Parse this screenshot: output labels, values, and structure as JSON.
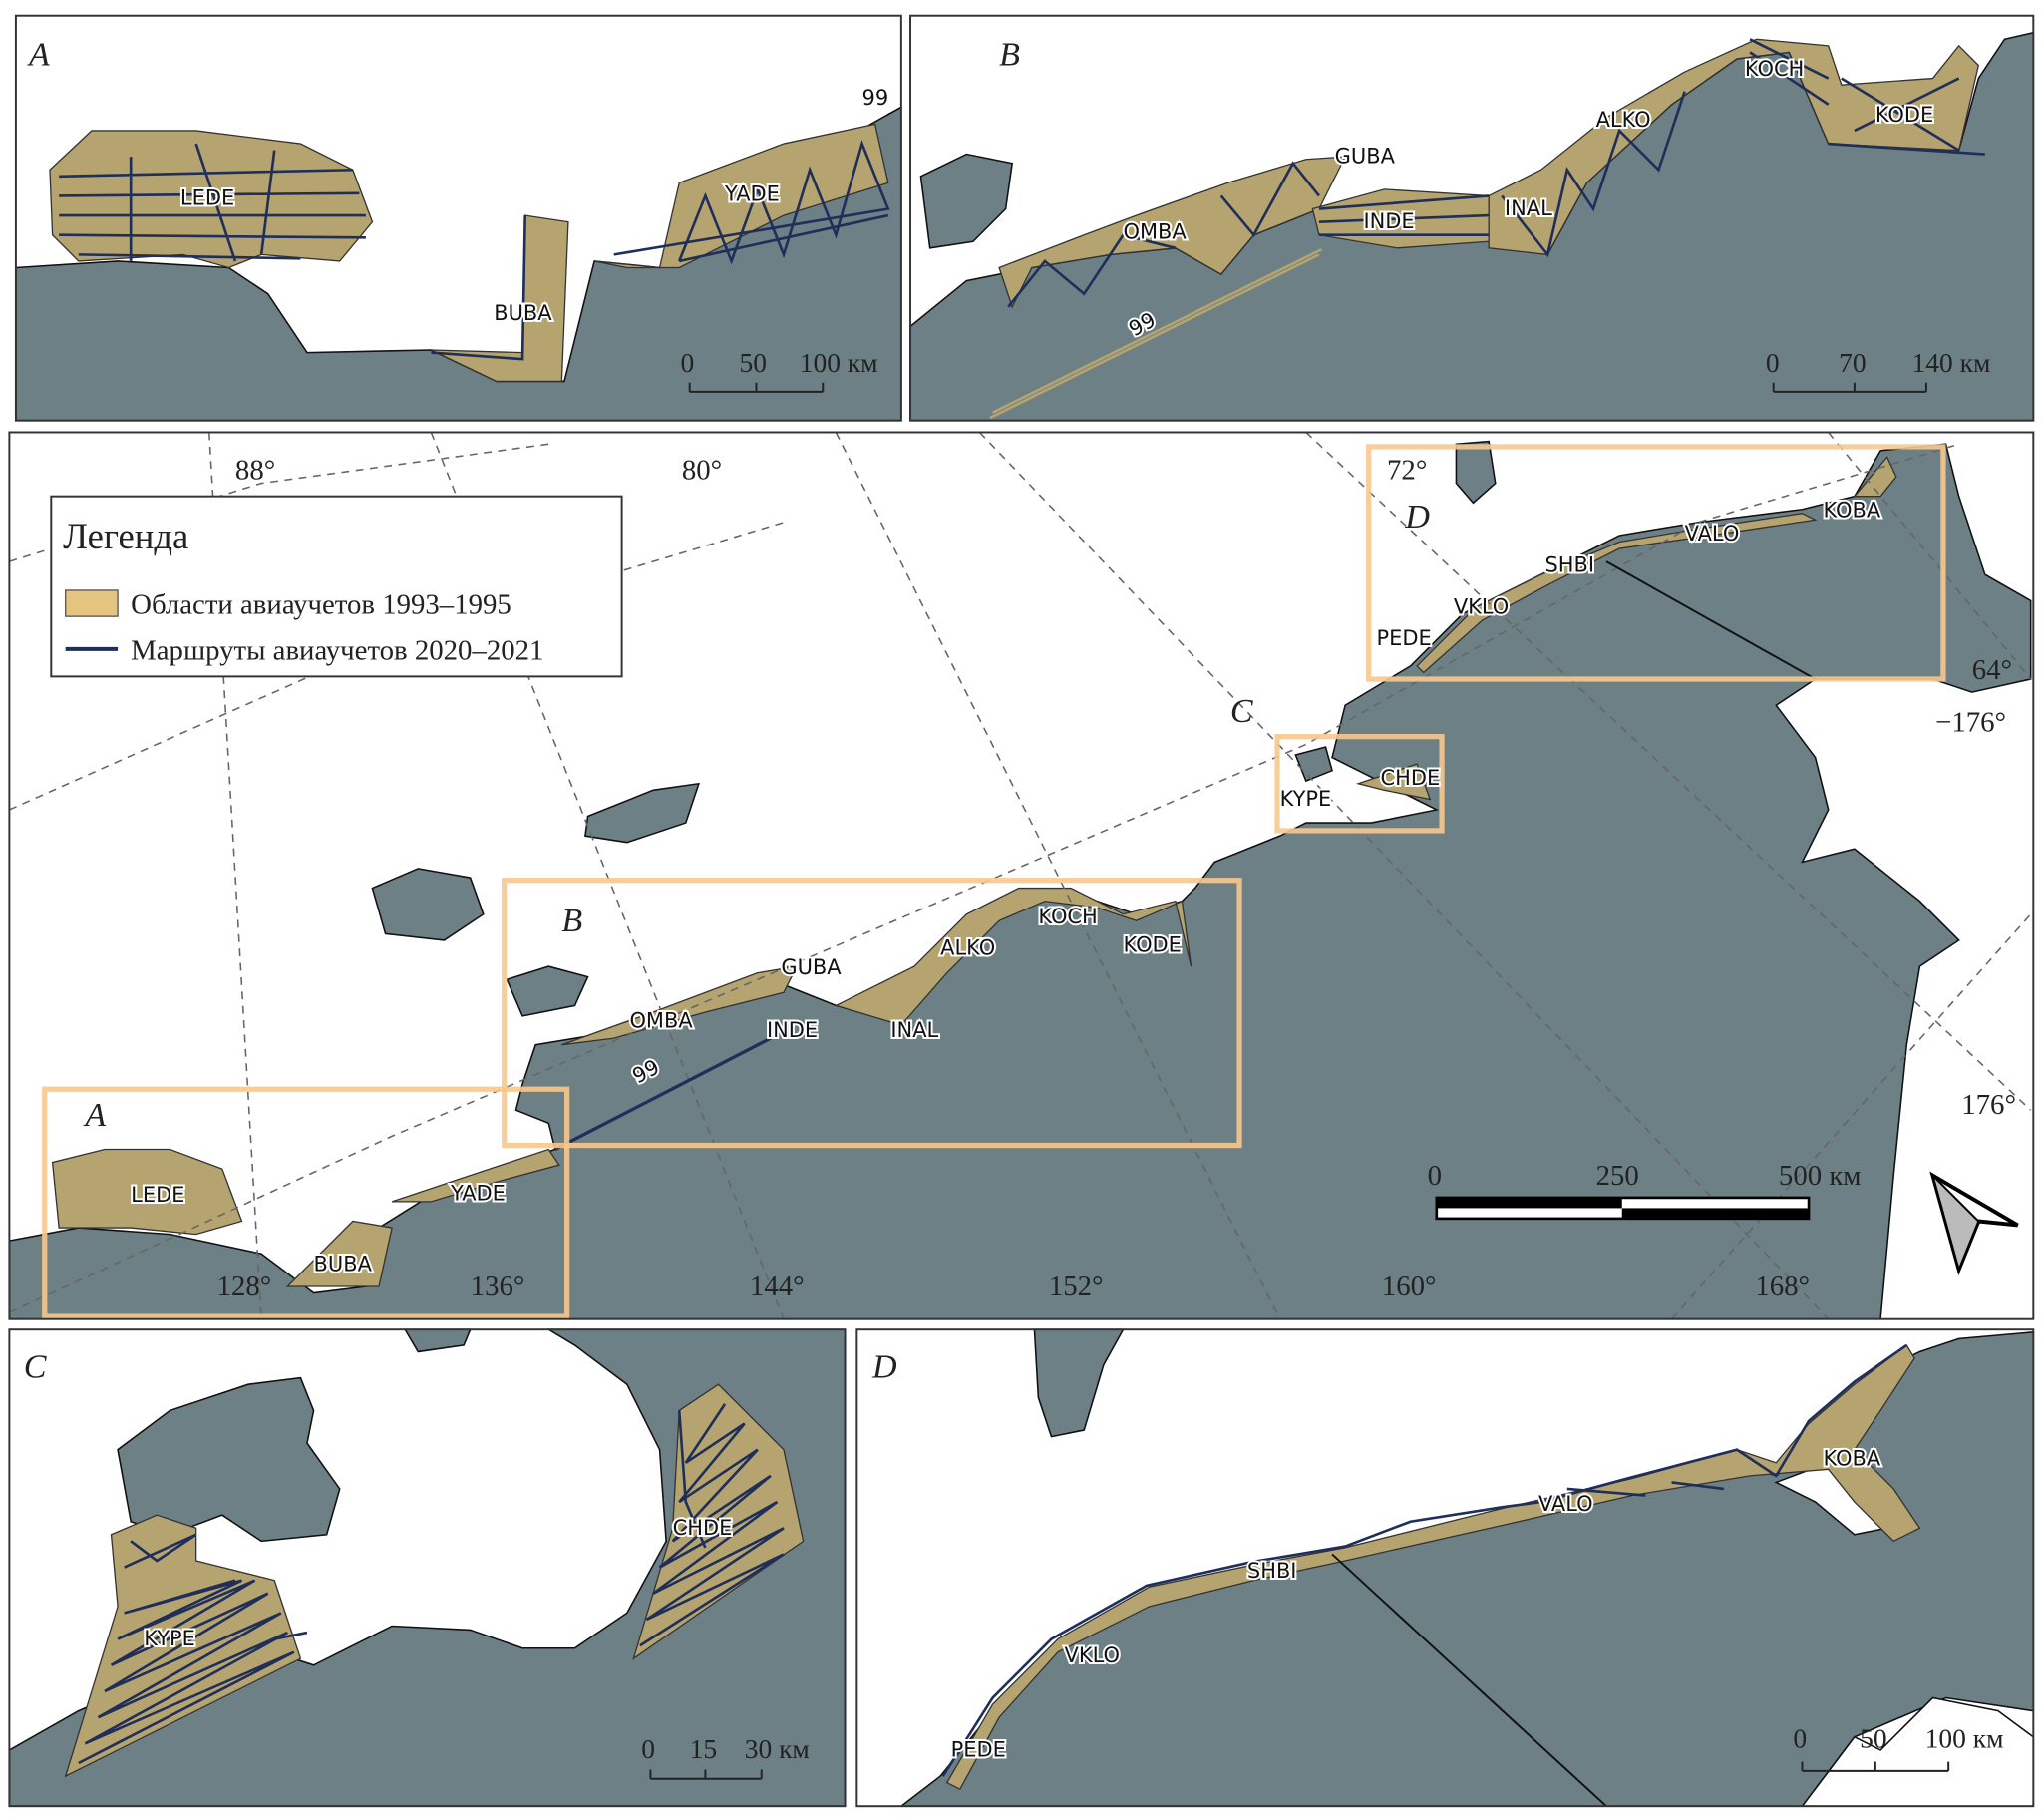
{
  "colors": {
    "land": "#6d8086",
    "survey_area": "#b5a46f",
    "route": "#1f2f5a",
    "inset_box": "#f7c88e",
    "sea": "#ffffff"
  },
  "legend": {
    "title": "Легенда",
    "items": [
      {
        "label": "Области авиаучетов 1993–1995",
        "swatch": "survey-area"
      },
      {
        "label": "Маршруты авиаучетов 2020–2021",
        "swatch": "route-line"
      }
    ]
  },
  "panels": {
    "A": {
      "letter": "A",
      "sites": [
        "LEDE",
        "BUBA",
        "YADE"
      ],
      "route_label": "99",
      "scale": [
        "0",
        "50",
        "100 км"
      ]
    },
    "B": {
      "letter": "B",
      "sites": [
        "OMBA",
        "GUBA",
        "INDE",
        "INAL",
        "ALKO",
        "KOCH",
        "KODE"
      ],
      "route_label": "99",
      "scale": [
        "0",
        "70",
        "140 км"
      ]
    },
    "C": {
      "letter": "C",
      "sites": [
        "KYPE",
        "CHDE"
      ],
      "scale": [
        "0",
        "15",
        "30 км"
      ]
    },
    "D": {
      "letter": "D",
      "sites": [
        "PEDE",
        "VKLO",
        "SHBI",
        "VALO",
        "KOBA"
      ],
      "scale": [
        "0",
        "50",
        "100 км"
      ]
    },
    "main": {
      "box_letters": [
        "A",
        "B",
        "C",
        "D"
      ],
      "sites": [
        "LEDE",
        "BUBA",
        "YADE",
        "OMBA",
        "GUBA",
        "INDE",
        "INAL",
        "ALKO",
        "KOCH",
        "KODE",
        "KYPE",
        "CHDE",
        "PEDE",
        "VKLO",
        "SHBI",
        "VALO",
        "KOBA"
      ],
      "route_label": "99",
      "graticule": [
        "88°",
        "80°",
        "72°",
        "64°",
        "−176°",
        "176°",
        "128°",
        "136°",
        "144°",
        "152°",
        "160°",
        "168°"
      ],
      "scale": [
        "0",
        "250",
        "500 км"
      ],
      "north_arrow": "north-arrow-icon"
    }
  }
}
